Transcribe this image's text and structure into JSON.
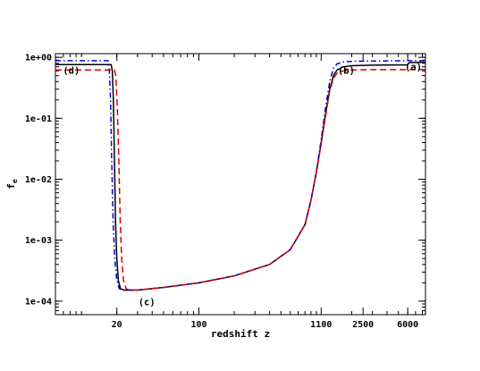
{
  "chart_data": {
    "type": "line",
    "xlabel": "redshift z",
    "ylabel": "f",
    "ylabel_subscript": "e",
    "x_scale": "log",
    "y_scale": "log",
    "xlim": [
      6,
      8500
    ],
    "ylim": [
      6e-05,
      1.15
    ],
    "x_major_ticks": [
      {
        "value": 20,
        "label": "20"
      },
      {
        "value": 100,
        "label": "100"
      },
      {
        "value": 1100,
        "label": "1100"
      },
      {
        "value": 2500,
        "label": "2500"
      },
      {
        "value": 6000,
        "label": "6000"
      }
    ],
    "y_major_ticks": [
      {
        "value": 1,
        "label": "1e+00"
      },
      {
        "value": 0.1,
        "label": "1e-01"
      },
      {
        "value": 0.01,
        "label": "1e-02"
      },
      {
        "value": 0.001,
        "label": "1e-03"
      },
      {
        "value": 0.0001,
        "label": "1e-04"
      }
    ],
    "grid": false,
    "legend": "none",
    "series": [
      {
        "color": "#000000",
        "dash": "solid",
        "points": [
          [
            6,
            0.76
          ],
          [
            17.9,
            0.76
          ],
          [
            18.3,
            0.6
          ],
          [
            18.7,
            0.2
          ],
          [
            19.1,
            0.02
          ],
          [
            19.5,
            0.002
          ],
          [
            20,
            0.0005
          ],
          [
            20.6,
            0.00022
          ],
          [
            21.5,
            0.00016
          ],
          [
            23,
            0.000152
          ],
          [
            30,
            0.000152
          ],
          [
            50,
            0.000168
          ],
          [
            100,
            0.0002
          ],
          [
            200,
            0.00026
          ],
          [
            400,
            0.0004
          ],
          [
            600,
            0.0007
          ],
          [
            800,
            0.0018
          ],
          [
            900,
            0.0045
          ],
          [
            1000,
            0.013
          ],
          [
            1100,
            0.04
          ],
          [
            1200,
            0.12
          ],
          [
            1300,
            0.3
          ],
          [
            1400,
            0.5
          ],
          [
            1500,
            0.62
          ],
          [
            1700,
            0.7
          ],
          [
            2000,
            0.73
          ],
          [
            3000,
            0.745
          ],
          [
            5000,
            0.75
          ],
          [
            5900,
            0.75
          ],
          [
            6200,
            0.82
          ],
          [
            8500,
            0.83
          ]
        ]
      },
      {
        "color": "#0000dd",
        "dash": "dashdot",
        "points": [
          [
            6,
            0.88
          ],
          [
            16.8,
            0.88
          ],
          [
            17.2,
            0.7
          ],
          [
            17.7,
            0.2
          ],
          [
            18.1,
            0.02
          ],
          [
            18.6,
            0.002
          ],
          [
            19.2,
            0.0005
          ],
          [
            20,
            0.00022
          ],
          [
            21,
            0.00016
          ],
          [
            23,
            0.000152
          ],
          [
            30,
            0.000152
          ],
          [
            50,
            0.000168
          ],
          [
            100,
            0.0002
          ],
          [
            200,
            0.00026
          ],
          [
            400,
            0.0004
          ],
          [
            600,
            0.0007
          ],
          [
            800,
            0.0018
          ],
          [
            900,
            0.0045
          ],
          [
            1000,
            0.013
          ],
          [
            1100,
            0.045
          ],
          [
            1200,
            0.15
          ],
          [
            1300,
            0.4
          ],
          [
            1400,
            0.66
          ],
          [
            1500,
            0.78
          ],
          [
            1700,
            0.84
          ],
          [
            2000,
            0.86
          ],
          [
            3000,
            0.87
          ],
          [
            6000,
            0.88
          ],
          [
            8500,
            0.88
          ]
        ]
      },
      {
        "color": "#dd0000",
        "dash": "dashed",
        "points": [
          [
            6,
            0.62
          ],
          [
            19.1,
            0.62
          ],
          [
            19.6,
            0.5
          ],
          [
            20.2,
            0.15
          ],
          [
            20.8,
            0.02
          ],
          [
            21.4,
            0.002
          ],
          [
            22,
            0.0005
          ],
          [
            22.8,
            0.00022
          ],
          [
            24,
            0.00016
          ],
          [
            26,
            0.000152
          ],
          [
            30,
            0.000152
          ],
          [
            50,
            0.000168
          ],
          [
            100,
            0.0002
          ],
          [
            200,
            0.00026
          ],
          [
            400,
            0.0004
          ],
          [
            600,
            0.0007
          ],
          [
            800,
            0.0018
          ],
          [
            900,
            0.0045
          ],
          [
            1000,
            0.013
          ],
          [
            1100,
            0.038
          ],
          [
            1200,
            0.11
          ],
          [
            1300,
            0.28
          ],
          [
            1400,
            0.45
          ],
          [
            1500,
            0.55
          ],
          [
            1700,
            0.6
          ],
          [
            2000,
            0.62
          ],
          [
            3000,
            0.63
          ],
          [
            6000,
            0.63
          ],
          [
            8500,
            0.63
          ]
        ]
      }
    ],
    "annotations": [
      {
        "text": "(a)",
        "x": 6700,
        "y": 0.62
      },
      {
        "text": "(b)",
        "x": 1800,
        "y": 0.54
      },
      {
        "text": "(c)",
        "x": 36,
        "y": 8.5e-05
      },
      {
        "text": "(d)",
        "x": 8.2,
        "y": 0.54
      }
    ]
  }
}
